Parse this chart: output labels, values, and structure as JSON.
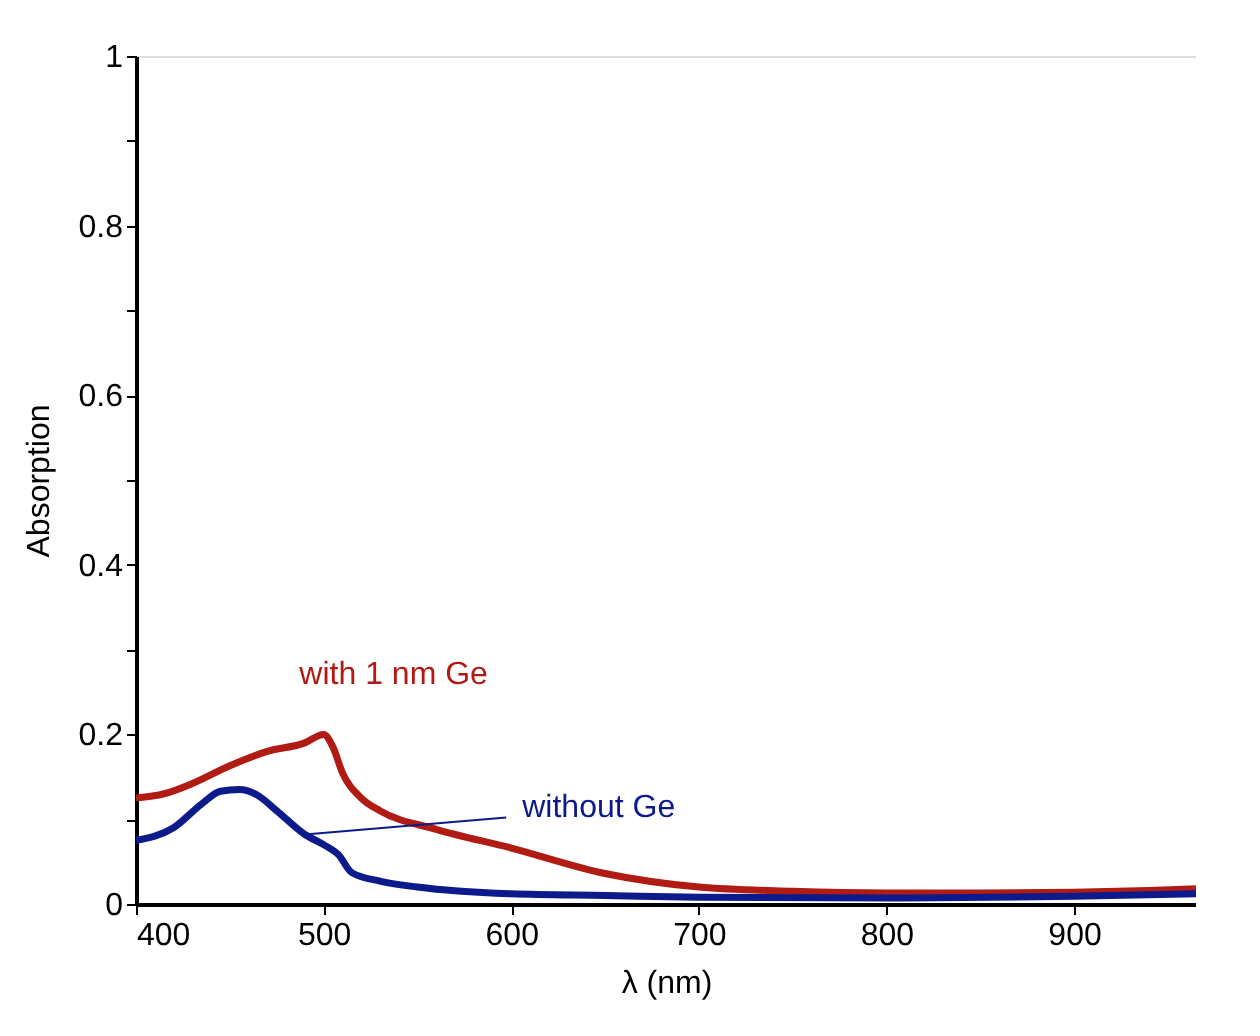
{
  "chart_data": {
    "type": "line",
    "xlabel": "λ (nm)",
    "ylabel": "Absorption",
    "xlim": [
      400,
      965
    ],
    "xticks": [
      400,
      500,
      600,
      700,
      800,
      900
    ],
    "ylim": [
      0,
      1
    ],
    "yticks": [
      0,
      {
        "value": 0.1,
        "label": null
      },
      0.2,
      {
        "value": 0.3,
        "label": null
      },
      0.4,
      {
        "value": 0.5,
        "label": null
      },
      0.6,
      {
        "value": 0.7,
        "label": null
      },
      0.8,
      {
        "value": 0.9,
        "label": null
      },
      1
    ],
    "grid": false,
    "legend": false,
    "line_style": "solid",
    "marker": "none",
    "series": [
      {
        "name": "with 1 nm Ge",
        "color": "#b01c14",
        "x": [
          400,
          415,
          430,
          450,
          470,
          490,
          500,
          505,
          510,
          520,
          530,
          560,
          600,
          650,
          700,
          750,
          800,
          850,
          900,
          940,
          965
        ],
        "values": [
          0.125,
          0.13,
          0.142,
          0.163,
          0.18,
          0.19,
          0.2,
          0.185,
          0.155,
          0.125,
          0.11,
          0.088,
          0.066,
          0.036,
          0.02,
          0.015,
          0.013,
          0.013,
          0.014,
          0.016,
          0.018
        ]
      },
      {
        "name": "without Ge",
        "color": "#0d1a8c",
        "x": [
          400,
          420,
          435,
          445,
          455,
          465,
          475,
          490,
          500,
          508,
          515,
          530,
          550,
          600,
          650,
          700,
          800,
          900,
          965
        ],
        "values": [
          0.075,
          0.09,
          0.118,
          0.133,
          0.135,
          0.128,
          0.11,
          0.082,
          0.07,
          0.058,
          0.037,
          0.027,
          0.02,
          0.012,
          0.01,
          0.008,
          0.007,
          0.009,
          0.012
        ]
      }
    ]
  }
}
